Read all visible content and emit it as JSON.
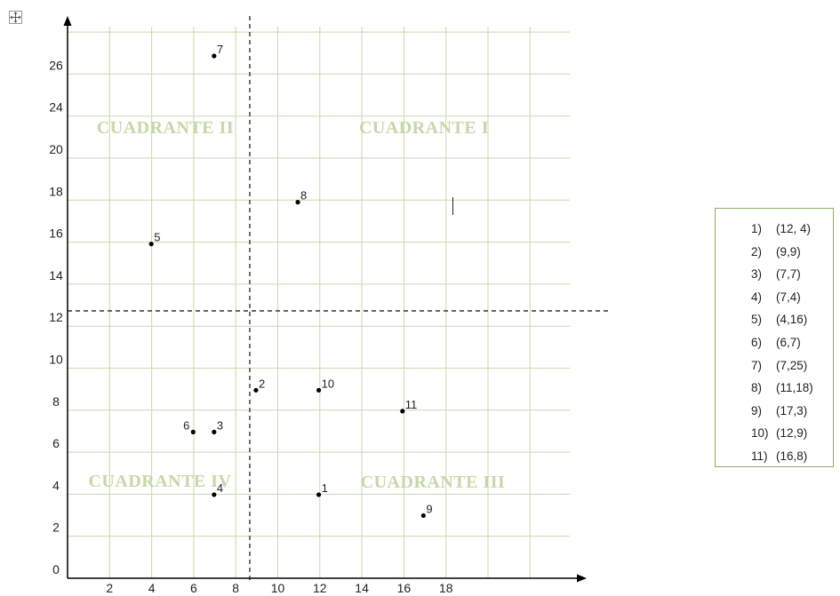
{
  "chart_data": {
    "type": "scatter",
    "x_ticks": [
      "2",
      "4",
      "6",
      "8",
      "10",
      "12",
      "14",
      "16",
      "18"
    ],
    "y_ticks": [
      "0",
      "2",
      "4",
      "6",
      "8",
      "10",
      "12",
      "14",
      "16",
      "18",
      "20",
      "24",
      "26"
    ],
    "points": [
      {
        "label": "1",
        "x": 12,
        "y": 4
      },
      {
        "label": "2",
        "x": 9,
        "y": 9
      },
      {
        "label": "3",
        "x": 7,
        "y": 7
      },
      {
        "label": "4",
        "x": 7,
        "y": 4
      },
      {
        "label": "5",
        "x": 4,
        "y": 16
      },
      {
        "label": "6",
        "x": 6,
        "y": 7
      },
      {
        "label": "7",
        "x": 7,
        "y": 25
      },
      {
        "label": "8",
        "x": 11,
        "y": 18
      },
      {
        "label": "9",
        "x": 17,
        "y": 3
      },
      {
        "label": "10",
        "x": 12,
        "y": 9
      },
      {
        "label": "11",
        "x": 16,
        "y": 8
      }
    ],
    "quadrant_labels": [
      "CUADRANTE I",
      "CUADRANTE II",
      "CUADRANTE III",
      "CUADRANTE IV"
    ],
    "divider_lines": {
      "vertical_x": 9,
      "horizontal_y": 12
    },
    "grid": true,
    "legend": {
      "placement": "right",
      "items": [
        {
          "num": "1)",
          "coords": "(12, 4)"
        },
        {
          "num": "2)",
          "coords": "(9,9)"
        },
        {
          "num": "3)",
          "coords": "(7,7)"
        },
        {
          "num": "4)",
          "coords": "(7,4)"
        },
        {
          "num": "5)",
          "coords": "(4,16)"
        },
        {
          "num": "6)",
          "coords": "(6,7)"
        },
        {
          "num": "7)",
          "coords": "(7,25)"
        },
        {
          "num": "8)",
          "coords": "(11,18)"
        },
        {
          "num": "9)",
          "coords": "(17,3)"
        },
        {
          "num": "10)",
          "coords": "(12,9)"
        },
        {
          "num": "11)",
          "coords": "(16,8)"
        }
      ]
    },
    "colors": {
      "grid": "#c9d9b0",
      "quadrant_text": "#c6d8a8",
      "legend_border": "#8faa6a",
      "axis": "#000000"
    }
  },
  "icons": {
    "move_handle": "move-handle-icon"
  }
}
